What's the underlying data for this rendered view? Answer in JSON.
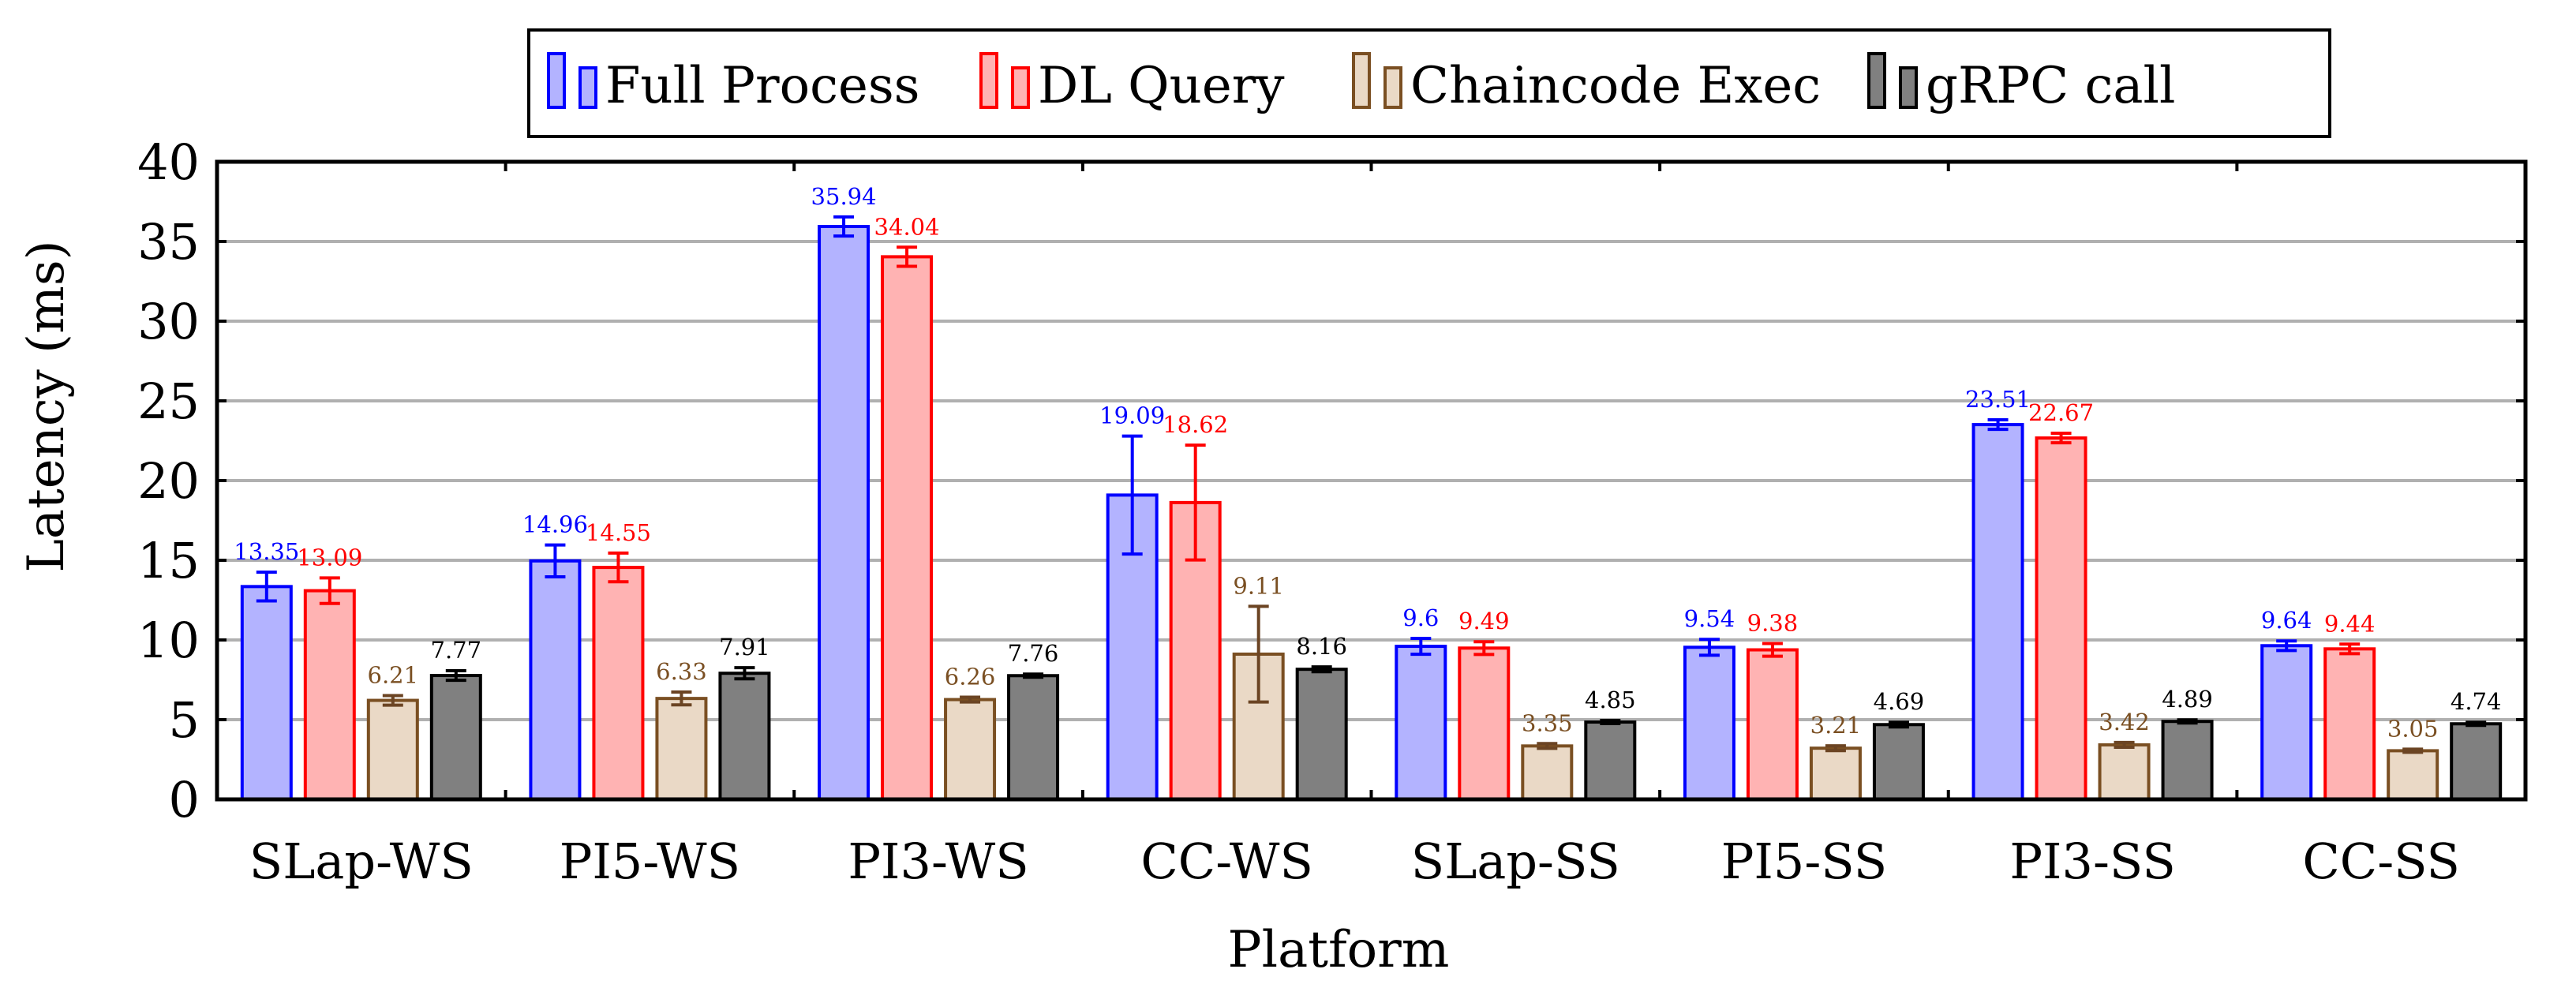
{
  "chart_data": {
    "type": "bar",
    "xlabel": "Platform",
    "ylabel": "Latency (ms)",
    "ylim": [
      0,
      40
    ],
    "yticks": [
      0,
      5,
      10,
      15,
      20,
      25,
      30,
      35,
      40
    ],
    "ytick_labels": [
      "0",
      "5",
      "10",
      "15",
      "20",
      "25",
      "30",
      "35",
      "40"
    ],
    "grid": true,
    "legend_position": "top-center",
    "categories": [
      "SLap-WS",
      "PI5-WS",
      "PI3-WS",
      "CC-WS",
      "SLap-SS",
      "PI5-SS",
      "PI3-SS",
      "CC-SS"
    ],
    "series": [
      {
        "name": "Full Process",
        "fill": "#b3b3ff",
        "stroke": "#0000ff",
        "label_color": "#0000ff",
        "values": [
          13.35,
          14.96,
          35.94,
          19.09,
          9.6,
          9.54,
          23.51,
          9.64
        ],
        "value_labels": [
          "13.35",
          "14.96",
          "35.94",
          "19.09",
          "9.6",
          "9.54",
          "23.51",
          "9.64"
        ],
        "errors": [
          0.9,
          1.0,
          0.6,
          3.7,
          0.5,
          0.5,
          0.3,
          0.3
        ]
      },
      {
        "name": "DL Query",
        "fill": "#ffb3b3",
        "stroke": "#ff0000",
        "label_color": "#ff0000",
        "values": [
          13.09,
          14.55,
          34.04,
          18.62,
          9.49,
          9.38,
          22.67,
          9.44
        ],
        "value_labels": [
          "13.09",
          "14.55",
          "34.04",
          "18.62",
          "9.49",
          "9.38",
          "22.67",
          "9.44"
        ],
        "errors": [
          0.8,
          0.9,
          0.6,
          3.6,
          0.4,
          0.4,
          0.3,
          0.3
        ]
      },
      {
        "name": "Chaincode Exec",
        "fill": "#ead9c6",
        "stroke": "#7a4f22",
        "label_color": "#7a4f22",
        "values": [
          6.21,
          6.33,
          6.26,
          9.11,
          3.35,
          3.21,
          3.42,
          3.05
        ],
        "value_labels": [
          "6.21",
          "6.33",
          "6.26",
          "9.11",
          "3.35",
          "3.21",
          "3.42",
          "3.05"
        ],
        "errors": [
          0.3,
          0.4,
          0.15,
          3.0,
          0.15,
          0.15,
          0.15,
          0.1
        ]
      },
      {
        "name": "gRPC call",
        "fill": "#808080",
        "stroke": "#000000",
        "label_color": "#000000",
        "values": [
          7.77,
          7.91,
          7.76,
          8.16,
          4.85,
          4.69,
          4.89,
          4.74
        ],
        "value_labels": [
          "7.77",
          "7.91",
          "7.76",
          "8.16",
          "4.85",
          "4.69",
          "4.89",
          "4.74"
        ],
        "errors": [
          0.3,
          0.35,
          0.1,
          0.15,
          0.1,
          0.15,
          0.1,
          0.1
        ]
      }
    ]
  }
}
